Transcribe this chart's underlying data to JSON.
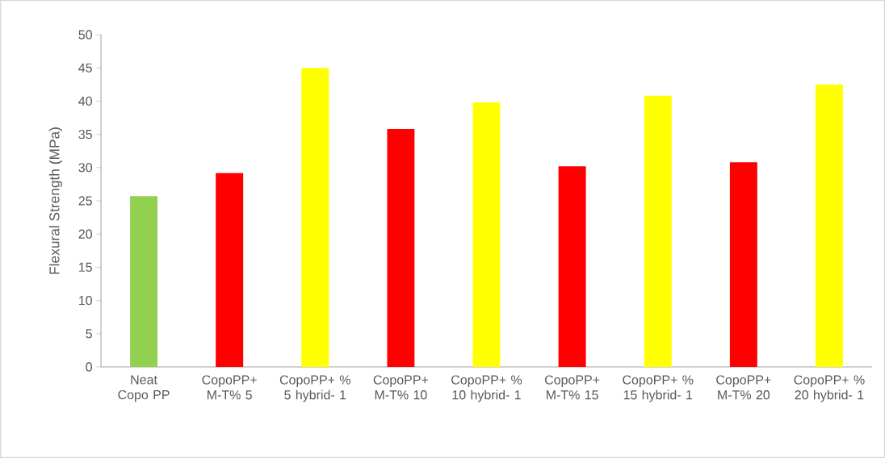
{
  "chart_data": {
    "type": "bar",
    "ylabel": "Flexural Strength (MPa)",
    "categories": [
      "Neat Copo PP",
      "CopoPP+ M-T% 5",
      "CopoPP+ % 5 hybrid- 1",
      "CopoPP+ M-T% 10",
      "CopoPP+ % 10 hybrid- 1",
      "CopoPP+ M-T% 15",
      "CopoPP+ % 15 hybrid- 1",
      "CopoPP+ M-T% 20",
      "CopoPP+ % 20 hybrid- 1"
    ],
    "values": [
      25.7,
      29.2,
      45.0,
      35.8,
      39.8,
      30.2,
      40.8,
      30.8,
      42.5
    ],
    "colors": [
      "#92d050",
      "#ff0000",
      "#ffff00",
      "#ff0000",
      "#ffff00",
      "#ff0000",
      "#ffff00",
      "#ff0000",
      "#ffff00"
    ],
    "ylim": [
      0,
      50
    ],
    "yticks": [
      0,
      5,
      10,
      15,
      20,
      25,
      30,
      35,
      40,
      45,
      50
    ],
    "grid": false
  }
}
